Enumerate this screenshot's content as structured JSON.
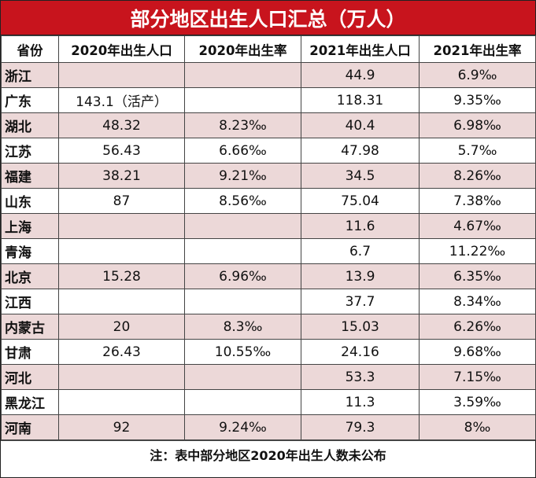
{
  "title": "部分地区出生人口汇总（万人）",
  "headers": [
    "省份",
    "2020年出生人口",
    "2020年出生率",
    "2021年出生人口",
    "2021年出生率"
  ],
  "rows": [
    {
      "province": "浙江",
      "births2020": "",
      "rate2020": "",
      "births2021": "44.9",
      "rate2021": "6.9‰"
    },
    {
      "province": "广东",
      "births2020": "143.1（活产）",
      "rate2020": "",
      "births2021": "118.31",
      "rate2021": "9.35‰"
    },
    {
      "province": "湖北",
      "births2020": "48.32",
      "rate2020": "8.23‰",
      "births2021": "40.4",
      "rate2021": "6.98‰"
    },
    {
      "province": "江苏",
      "births2020": "56.43",
      "rate2020": "6.66‰",
      "births2021": "47.98",
      "rate2021": "5.7‰"
    },
    {
      "province": "福建",
      "births2020": "38.21",
      "rate2020": "9.21‰",
      "births2021": "34.5",
      "rate2021": "8.26‰"
    },
    {
      "province": "山东",
      "births2020": "87",
      "rate2020": "8.56‰",
      "births2021": "75.04",
      "rate2021": "7.38‰"
    },
    {
      "province": "上海",
      "births2020": "",
      "rate2020": "",
      "births2021": "11.6",
      "rate2021": "4.67‰"
    },
    {
      "province": "青海",
      "births2020": "",
      "rate2020": "",
      "births2021": "6.7",
      "rate2021": "11.22‰"
    },
    {
      "province": "北京",
      "births2020": "15.28",
      "rate2020": "6.96‰",
      "births2021": "13.9",
      "rate2021": "6.35‰"
    },
    {
      "province": "江西",
      "births2020": "",
      "rate2020": "",
      "births2021": "37.7",
      "rate2021": "8.34‰"
    },
    {
      "province": "内蒙古",
      "births2020": "20",
      "rate2020": "8.3‰",
      "births2021": "15.03",
      "rate2021": "6.26‰"
    },
    {
      "province": "甘肃",
      "births2020": "26.43",
      "rate2020": "10.55‰",
      "births2021": "24.16",
      "rate2021": "9.68‰"
    },
    {
      "province": "河北",
      "births2020": "",
      "rate2020": "",
      "births2021": "53.3",
      "rate2021": "7.15‰"
    },
    {
      "province": "黑龙江",
      "births2020": "",
      "rate2020": "",
      "births2021": "11.3",
      "rate2021": "3.59‰"
    },
    {
      "province": "河南",
      "births2020": "92",
      "rate2020": "9.24‰",
      "births2021": "79.3",
      "rate2021": "8‰"
    }
  ],
  "footnote": "注：表中部分地区2020年出生人数未公布",
  "colors": {
    "title_bg": "#c8141d",
    "shaded_row": "#ecd8d8",
    "plain_row": "#ffffff"
  }
}
